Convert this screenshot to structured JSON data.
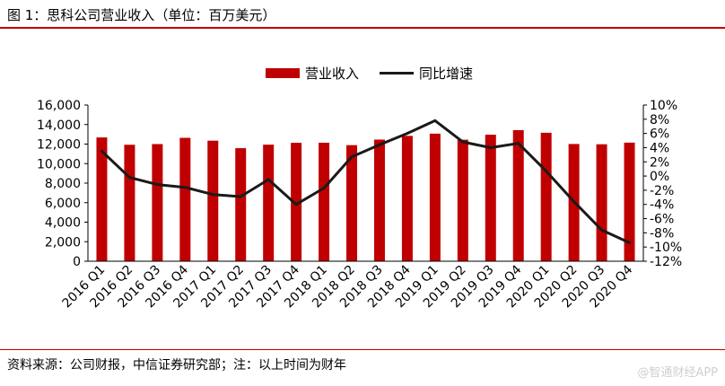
{
  "header": {
    "title": "图 1：思科公司营业收入（单位：百万美元）"
  },
  "footer": {
    "source": "资料来源：公司财报，中信证券研究部；注：以上时间为财年",
    "watermark": "@智通财经APP"
  },
  "colors": {
    "bar": "#c00000",
    "line": "#1a1a1a",
    "rule": "#c00000"
  },
  "chart_data": {
    "type": "bar",
    "title": "",
    "categories": [
      "2016 Q1",
      "2016 Q2",
      "2016 Q3",
      "2016 Q4",
      "2017 Q1",
      "2017 Q2",
      "2017 Q3",
      "2017 Q4",
      "2018 Q1",
      "2018 Q2",
      "2018 Q3",
      "2018 Q4",
      "2019 Q1",
      "2019 Q2",
      "2019 Q3",
      "2019 Q4",
      "2020 Q1",
      "2020 Q2",
      "2020 Q3",
      "2020 Q4"
    ],
    "series": [
      {
        "name": "营业收入",
        "type": "bar",
        "axis": "left",
        "values": [
          12680,
          11930,
          12000,
          12640,
          12350,
          11580,
          11940,
          12130,
          12140,
          11890,
          12460,
          12840,
          13070,
          12450,
          12960,
          13430,
          13160,
          12010,
          11980,
          12150
        ]
      },
      {
        "name": "同比增速",
        "type": "line",
        "axis": "right",
        "values": [
          3.5,
          -0.2,
          -1.2,
          -1.6,
          -2.6,
          -2.9,
          -0.5,
          -4.0,
          -1.7,
          2.7,
          4.4,
          6.0,
          7.8,
          4.8,
          4.0,
          4.6,
          0.7,
          -3.6,
          -7.6,
          -9.4
        ]
      }
    ],
    "y_left": {
      "min": 0,
      "max": 16000,
      "step": 2000,
      "ticks": [
        "0",
        "2,000",
        "4,000",
        "6,000",
        "8,000",
        "10,000",
        "12,000",
        "14,000",
        "16,000"
      ]
    },
    "y_right": {
      "min": -12,
      "max": 10,
      "step": 2,
      "ticks": [
        "-12%",
        "-10%",
        "-8%",
        "-6%",
        "-4%",
        "-2%",
        "0%",
        "2%",
        "4%",
        "6%",
        "8%",
        "10%"
      ]
    },
    "legend": {
      "position": "top-center"
    },
    "grid": false
  }
}
